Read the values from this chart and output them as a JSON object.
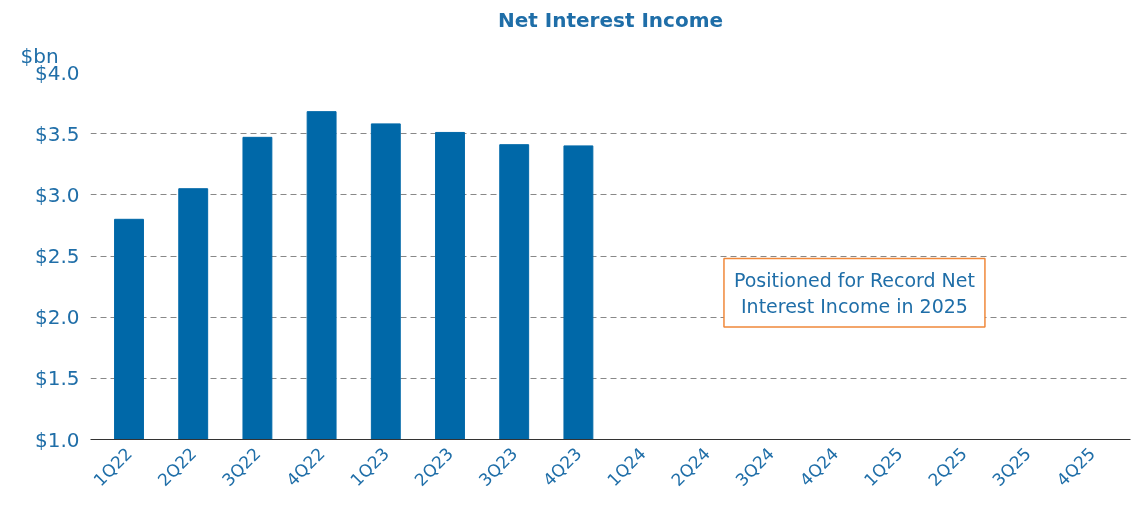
{
  "chart_data": {
    "type": "bar",
    "title": "Net Interest Income",
    "ylabel": "$bn",
    "categories": [
      "1Q22",
      "2Q22",
      "3Q22",
      "4Q22",
      "1Q23",
      "2Q23",
      "3Q23",
      "4Q23",
      "1Q24",
      "2Q24",
      "3Q24",
      "4Q24",
      "1Q25",
      "2Q25",
      "3Q25",
      "4Q25"
    ],
    "series": [
      {
        "color": "#0068a8",
        "values": [
          2.8,
          3.05,
          3.47,
          3.68,
          3.58,
          3.51,
          3.41,
          3.4,
          null,
          null,
          null,
          null,
          null,
          null,
          null,
          null
        ]
      }
    ],
    "ylim": [
      1.0,
      4.0
    ],
    "yticks": [
      {
        "value": 1.0,
        "label": "$1.0"
      },
      {
        "value": 1.5,
        "label": "$1.5"
      },
      {
        "value": 2.0,
        "label": "$2.0"
      },
      {
        "value": 2.5,
        "label": "$2.5"
      },
      {
        "value": 3.0,
        "label": "$3.0"
      },
      {
        "value": 3.5,
        "label": "$3.5"
      },
      {
        "value": 4.0,
        "label": "$4.0"
      }
    ],
    "grid": "y",
    "legend": false,
    "annotations": [
      "Positioned for Record Net\nInterest Income in 2025"
    ]
  }
}
